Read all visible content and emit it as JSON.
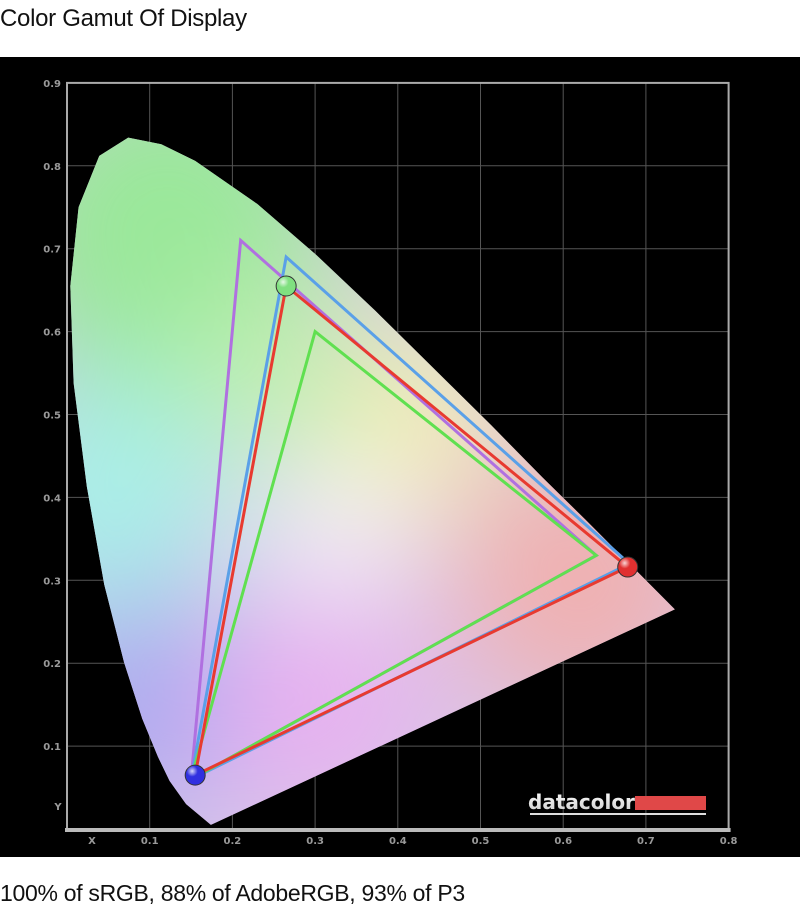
{
  "title": "Color Gamut Of Display",
  "caption": "100% of sRGB, 88% of AdobeRGB, 93% of P3",
  "logo": {
    "text": "datacolor",
    "bar_color": "#e04848"
  },
  "chart_data": {
    "type": "scatter",
    "title": "",
    "xlabel": "X",
    "ylabel": "Y",
    "xlim": [
      0,
      0.8
    ],
    "ylim": [
      0,
      0.9
    ],
    "grid": true,
    "x_ticks": [
      "0.1",
      "0.2",
      "0.3",
      "0.4",
      "0.5",
      "0.6",
      "0.7",
      "0.8"
    ],
    "y_ticks": [
      "0.1",
      "0.2",
      "0.3",
      "0.4",
      "0.5",
      "0.6",
      "0.7",
      "0.8",
      "0.9"
    ],
    "spectral_locus": [
      [
        0.174,
        0.005
      ],
      [
        0.144,
        0.03
      ],
      [
        0.124,
        0.058
      ],
      [
        0.11,
        0.087
      ],
      [
        0.091,
        0.133
      ],
      [
        0.069,
        0.201
      ],
      [
        0.045,
        0.295
      ],
      [
        0.024,
        0.413
      ],
      [
        0.008,
        0.538
      ],
      [
        0.004,
        0.655
      ],
      [
        0.014,
        0.75
      ],
      [
        0.039,
        0.812
      ],
      [
        0.074,
        0.834
      ],
      [
        0.114,
        0.826
      ],
      [
        0.155,
        0.806
      ],
      [
        0.23,
        0.754
      ],
      [
        0.302,
        0.692
      ],
      [
        0.373,
        0.625
      ],
      [
        0.444,
        0.555
      ],
      [
        0.513,
        0.487
      ],
      [
        0.575,
        0.424
      ],
      [
        0.627,
        0.373
      ],
      [
        0.692,
        0.308
      ],
      [
        0.735,
        0.265
      ]
    ],
    "series": [
      {
        "color": "#b070e0",
        "points": [
          [
            0.21,
            0.71
          ],
          [
            0.64,
            0.33
          ],
          [
            0.15,
            0.06
          ]
        ]
      },
      {
        "color": "#5aa0e8",
        "points": [
          [
            0.265,
            0.69
          ],
          [
            0.68,
            0.32
          ],
          [
            0.15,
            0.06
          ]
        ]
      },
      {
        "color": "#60e050",
        "points": [
          [
            0.3,
            0.6
          ],
          [
            0.64,
            0.33
          ],
          [
            0.15,
            0.06
          ]
        ]
      },
      {
        "color": "#e83a30",
        "points": [
          [
            0.265,
            0.655
          ],
          [
            0.678,
            0.316
          ],
          [
            0.155,
            0.065
          ]
        ]
      }
    ],
    "primaries": [
      {
        "color": "#80e080",
        "point": [
          0.265,
          0.655
        ]
      },
      {
        "color": "#e03030",
        "point": [
          0.678,
          0.316
        ]
      },
      {
        "color": "#3030e0",
        "point": [
          0.155,
          0.065
        ]
      }
    ]
  }
}
